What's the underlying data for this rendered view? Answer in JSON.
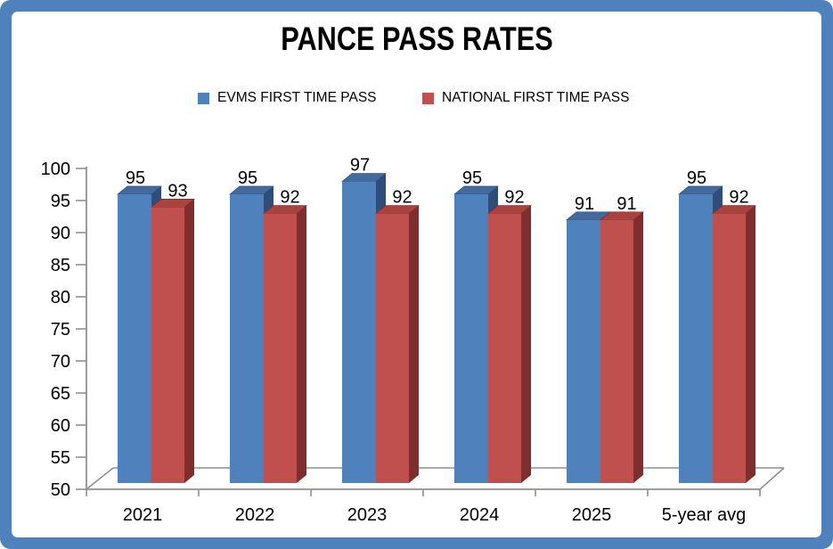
{
  "frame": {
    "border_color": "#4F81BD",
    "panel_background": "#FFFFFF"
  },
  "title": "PANCE PASS RATES",
  "legend": {
    "position": "top",
    "items": [
      "EVMS FIRST TIME PASS",
      "NATIONAL FIRST TIME PASS"
    ]
  },
  "chart_data": {
    "type": "bar",
    "style": "3d-clustered-column",
    "title": "PANCE PASS RATES",
    "categories": [
      "2021",
      "2022",
      "2023",
      "2024",
      "2025",
      "5-year avg"
    ],
    "series": [
      {
        "name": "EVMS FIRST TIME PASS",
        "values": [
          95,
          95,
          97,
          95,
          91,
          95
        ],
        "color": "#4F81BD",
        "color_top": "#44699D",
        "color_side": "#2E4D79"
      },
      {
        "name": "NATIONAL FIRST TIME PASS",
        "values": [
          93,
          92,
          92,
          92,
          91,
          92
        ],
        "color": "#C0504D",
        "color_top": "#A8433F",
        "color_side": "#7E2E2C"
      }
    ],
    "xlabel": "",
    "ylabel": "",
    "ylim": [
      50,
      100
    ],
    "yticks": [
      50,
      55,
      60,
      65,
      70,
      75,
      80,
      85,
      90,
      95,
      100
    ],
    "grid": false,
    "data_labels": true,
    "axis_color": "#909090",
    "text_color": "#000000",
    "legend_position": "top"
  }
}
